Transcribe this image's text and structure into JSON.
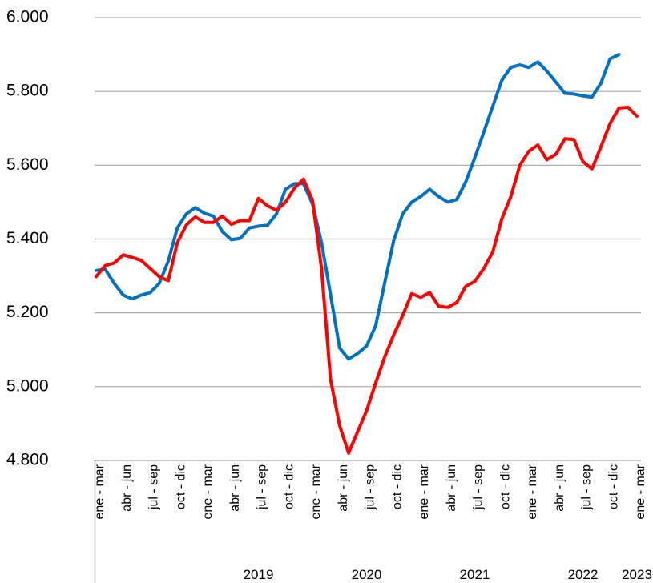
{
  "chart_data": {
    "type": "line",
    "categories": [
      "ene - mar",
      null,
      null,
      "abr - jun",
      null,
      null,
      "jul - sep",
      null,
      null,
      "oct - dic",
      null,
      null,
      "ene - mar",
      null,
      null,
      "abr - jun",
      null,
      null,
      "jul - sep",
      null,
      null,
      "oct - dic",
      null,
      null,
      "ene - mar",
      null,
      null,
      "abr - jun",
      null,
      null,
      "jul - sep",
      null,
      null,
      "oct - dic",
      null,
      null,
      "ene - mar",
      null,
      null,
      "abr - jun",
      null,
      null,
      "jul - sep",
      null,
      null,
      "oct - dic",
      null,
      null,
      "ene - mar",
      null,
      null,
      "abr - jun",
      null,
      null,
      "jul - sep",
      null,
      null,
      "oct - dic",
      null,
      null,
      "ene - mar"
    ],
    "groups": [
      null,
      "2019",
      "2020",
      "2021",
      "2022",
      "2023"
    ],
    "series": [
      {
        "color": "#0070c0",
        "values": [
          5315,
          5318,
          5280,
          5248,
          5238,
          5248,
          5255,
          5280,
          5340,
          5430,
          5468,
          5485,
          5470,
          5462,
          5420,
          5398,
          5402,
          5430,
          5435,
          5437,
          5468,
          5535,
          5550,
          5550,
          5495,
          5390,
          5250,
          5105,
          5075,
          5090,
          5110,
          5165,
          5280,
          5395,
          5468,
          5500,
          5515,
          5535,
          5515,
          5500,
          5507,
          5555,
          5620,
          5690,
          5760,
          5830,
          5865,
          5872,
          5865,
          5880,
          5855,
          5825,
          5795,
          5793,
          5788,
          5785,
          5822,
          5888,
          5900,
          null,
          null
        ]
      },
      {
        "color": "#ff0000",
        "values": [
          5298,
          5328,
          5335,
          5357,
          5350,
          5342,
          5320,
          5298,
          5287,
          5390,
          5438,
          5460,
          5445,
          5445,
          5462,
          5440,
          5450,
          5450,
          5510,
          5490,
          5478,
          5500,
          5538,
          5562,
          5505,
          5320,
          5020,
          4895,
          4820,
          4878,
          4935,
          5010,
          5080,
          5140,
          5193,
          5252,
          5242,
          5255,
          5218,
          5215,
          5228,
          5272,
          5285,
          5320,
          5365,
          5455,
          5515,
          5600,
          5638,
          5655,
          5615,
          5630,
          5672,
          5670,
          5610,
          5590,
          5650,
          5713,
          5755,
          5757,
          5733
        ]
      }
    ],
    "ylim": [
      4800,
      6000
    ],
    "yticks": [
      {
        "value": 4800,
        "label": "4.800"
      },
      {
        "value": 5000,
        "label": "5.000"
      },
      {
        "value": 5200,
        "label": "5.200"
      },
      {
        "value": 5400,
        "label": "5.400"
      },
      {
        "value": 5600,
        "label": "5.600"
      },
      {
        "value": 5800,
        "label": "5.800"
      },
      {
        "value": 6000,
        "label": "6.000"
      }
    ],
    "grid": true
  }
}
